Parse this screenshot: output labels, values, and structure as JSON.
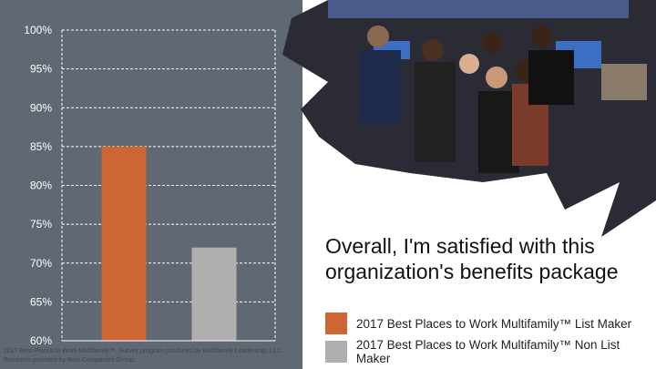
{
  "chart_data": {
    "type": "bar",
    "series": [
      {
        "name": "2017 Best Places to Work Multifamily™ List Maker",
        "values": [
          85
        ],
        "color": "#cc6633"
      },
      {
        "name": "2017 Best Places to Work Multifamily™ Non List Maker",
        "values": [
          72
        ],
        "color": "#b1aeae"
      }
    ],
    "ylim": [
      60,
      100
    ],
    "yticks": [
      "60%",
      "65%",
      "70%",
      "75%",
      "80%",
      "85%",
      "90%",
      "95%",
      "100%"
    ],
    "ytick_values": [
      60,
      65,
      70,
      75,
      80,
      85,
      90,
      95,
      100
    ],
    "grid": true,
    "legend_position": "bottom-right",
    "title": "Overall, I'm satisfied with this organization's benefits package"
  },
  "footnote": "2017 Best Places to Work Multifamily™. Survey program produced by Multifamily Leadership, LLC. Research provided by Best Companies Group.",
  "colors": {
    "panel": "#5f6873"
  }
}
